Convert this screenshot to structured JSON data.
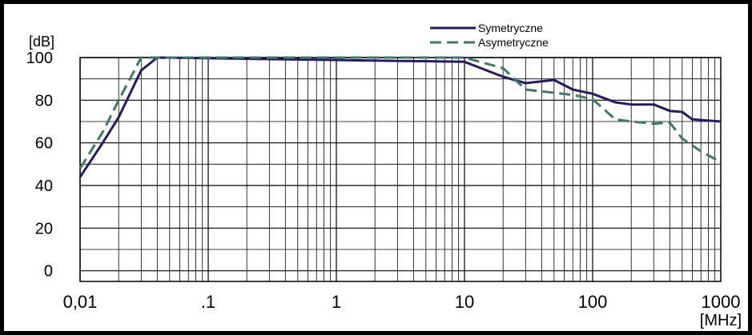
{
  "chart_data": {
    "type": "line",
    "x_scale": "log",
    "xlim": [
      0.01,
      1000
    ],
    "ylim": [
      -5,
      100
    ],
    "xlabel": "[MHz]",
    "ylabel": "[dB]",
    "x_tick_labels": [
      {
        "value": 0.01,
        "label": "0,01"
      },
      {
        "value": 0.1,
        "label": ".1"
      },
      {
        "value": 1,
        "label": "1"
      },
      {
        "value": 10,
        "label": "10"
      },
      {
        "value": 100,
        "label": "100"
      },
      {
        "value": 1000,
        "label": "1000"
      }
    ],
    "y_tick_labels": [
      {
        "value": 100,
        "label": "100"
      },
      {
        "value": 80,
        "label": "80"
      },
      {
        "value": 60,
        "label": "60"
      },
      {
        "value": 40,
        "label": "40"
      },
      {
        "value": 20,
        "label": "20"
      },
      {
        "value": 0,
        "label": "0"
      }
    ],
    "grid": true,
    "legend_position": "top-right",
    "series": [
      {
        "name": "Symetryczne",
        "color": "#241a66",
        "style": "solid",
        "points": [
          [
            0.01,
            44
          ],
          [
            0.015,
            60
          ],
          [
            0.02,
            72
          ],
          [
            0.03,
            94
          ],
          [
            0.04,
            100
          ],
          [
            10,
            98
          ],
          [
            20,
            91
          ],
          [
            30,
            88
          ],
          [
            50,
            89.5
          ],
          [
            70,
            85
          ],
          [
            100,
            83
          ],
          [
            150,
            79
          ],
          [
            200,
            78
          ],
          [
            300,
            78
          ],
          [
            400,
            75
          ],
          [
            500,
            74.5
          ],
          [
            600,
            71
          ],
          [
            1000,
            70
          ]
        ]
      },
      {
        "name": "Asymetryczne",
        "color": "#3d7a6c",
        "style": "dashed",
        "points": [
          [
            0.01,
            48
          ],
          [
            0.015,
            65
          ],
          [
            0.02,
            80
          ],
          [
            0.03,
            100
          ],
          [
            10,
            100
          ],
          [
            20,
            95
          ],
          [
            30,
            85
          ],
          [
            50,
            83.5
          ],
          [
            70,
            82.5
          ],
          [
            100,
            80.5
          ],
          [
            150,
            71
          ],
          [
            200,
            70
          ],
          [
            300,
            69
          ],
          [
            400,
            69.5
          ],
          [
            500,
            62
          ],
          [
            700,
            56
          ],
          [
            1000,
            51
          ]
        ]
      }
    ]
  }
}
